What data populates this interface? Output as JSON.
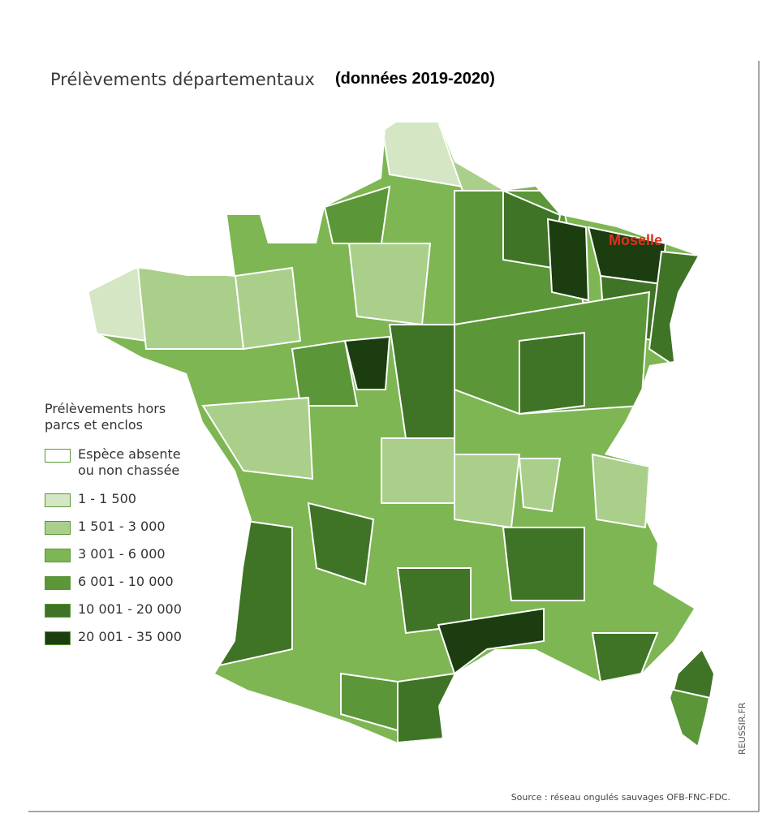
{
  "header": {
    "title": "Prélèvements départementaux",
    "subtitle": "(données 2019-2020)"
  },
  "annotations": {
    "moselle": "Moselle"
  },
  "legend": {
    "title": "Prélèvements hors parcs et enclos",
    "items": [
      {
        "label": "Espèce absente ou non chassée",
        "color": "#ffffff"
      },
      {
        "label": "1 - 1 500",
        "color": "#d4e6c3"
      },
      {
        "label": "1 501 - 3 000",
        "color": "#a9cf8a"
      },
      {
        "label": "3 001 - 6 000",
        "color": "#7db653"
      },
      {
        "label": "6 001 - 10 000",
        "color": "#5b9638"
      },
      {
        "label": "10 001 - 20 000",
        "color": "#3f7325"
      },
      {
        "label": "20 001 - 35 000",
        "color": "#1c3d10"
      }
    ]
  },
  "footer": {
    "source": "Source : réseau ongulés sauvages OFB-FNC-FDC.",
    "credit": "REUSSIR.FR"
  }
}
